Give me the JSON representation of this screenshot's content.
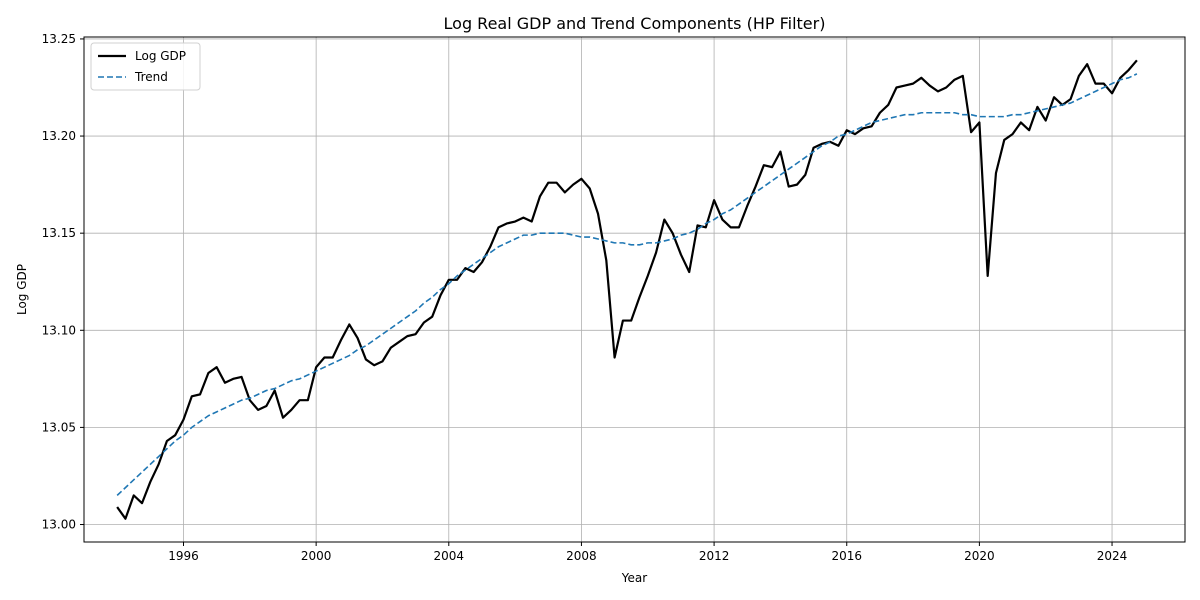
{
  "chart_data": {
    "type": "line",
    "title": "Log Real GDP and Trend Components (HP Filter)",
    "xlabel": "Year",
    "ylabel": "Log GDP",
    "xlim": [
      1993.0,
      2026.2
    ],
    "ylim": [
      12.991,
      13.251
    ],
    "x_ticks": [
      1996,
      2000,
      2004,
      2008,
      2012,
      2016,
      2020,
      2024
    ],
    "y_ticks": [
      13.0,
      13.05,
      13.1,
      13.15,
      13.2,
      13.25
    ],
    "y_tick_labels": [
      "13.00",
      "13.05",
      "13.10",
      "13.15",
      "13.20",
      "13.25"
    ],
    "grid": true,
    "legend": "top-left",
    "x": [
      1994.0,
      1994.25,
      1994.5,
      1994.75,
      1995.0,
      1995.25,
      1995.5,
      1995.75,
      1996.0,
      1996.25,
      1996.5,
      1996.75,
      1997.0,
      1997.25,
      1997.5,
      1997.75,
      1998.0,
      1998.25,
      1998.5,
      1998.75,
      1999.0,
      1999.25,
      1999.5,
      1999.75,
      2000.0,
      2000.25,
      2000.5,
      2000.75,
      2001.0,
      2001.25,
      2001.5,
      2001.75,
      2002.0,
      2002.25,
      2002.5,
      2002.75,
      2003.0,
      2003.25,
      2003.5,
      2003.75,
      2004.0,
      2004.25,
      2004.5,
      2004.75,
      2005.0,
      2005.25,
      2005.5,
      2005.75,
      2006.0,
      2006.25,
      2006.5,
      2006.75,
      2007.0,
      2007.25,
      2007.5,
      2007.75,
      2008.0,
      2008.25,
      2008.5,
      2008.75,
      2009.0,
      2009.25,
      2009.5,
      2009.75,
      2010.0,
      2010.25,
      2010.5,
      2010.75,
      2011.0,
      2011.25,
      2011.5,
      2011.75,
      2012.0,
      2012.25,
      2012.5,
      2012.75,
      2013.0,
      2013.25,
      2013.5,
      2013.75,
      2014.0,
      2014.25,
      2014.5,
      2014.75,
      2015.0,
      2015.25,
      2015.5,
      2015.75,
      2016.0,
      2016.25,
      2016.5,
      2016.75,
      2017.0,
      2017.25,
      2017.5,
      2017.75,
      2018.0,
      2018.25,
      2018.5,
      2018.75,
      2019.0,
      2019.25,
      2019.5,
      2019.75,
      2020.0,
      2020.25,
      2020.5,
      2020.75,
      2021.0,
      2021.25,
      2021.5,
      2021.75,
      2022.0,
      2022.25,
      2022.5,
      2022.75,
      2023.0,
      2023.25,
      2023.5,
      2023.75,
      2024.0,
      2024.25,
      2024.5,
      2024.75
    ],
    "series": [
      {
        "name": "Log GDP",
        "color": "#000000",
        "style": "solid",
        "values": [
          13.009,
          13.003,
          13.015,
          13.011,
          13.022,
          13.031,
          13.043,
          13.046,
          13.054,
          13.066,
          13.067,
          13.078,
          13.081,
          13.073,
          13.075,
          13.076,
          13.064,
          13.059,
          13.061,
          13.069,
          13.055,
          13.059,
          13.064,
          13.064,
          13.081,
          13.086,
          13.086,
          13.095,
          13.103,
          13.096,
          13.085,
          13.082,
          13.084,
          13.091,
          13.094,
          13.097,
          13.098,
          13.104,
          13.107,
          13.118,
          13.126,
          13.126,
          13.132,
          13.13,
          13.135,
          13.143,
          13.153,
          13.155,
          13.156,
          13.158,
          13.156,
          13.169,
          13.176,
          13.176,
          13.171,
          13.175,
          13.178,
          13.173,
          13.16,
          13.136,
          13.086,
          13.105,
          13.105,
          13.117,
          13.128,
          13.14,
          13.157,
          13.15,
          13.139,
          13.13,
          13.154,
          13.153,
          13.167,
          13.157,
          13.153,
          13.153,
          13.164,
          13.174,
          13.185,
          13.184,
          13.192,
          13.174,
          13.175,
          13.18,
          13.194,
          13.196,
          13.197,
          13.195,
          13.203,
          13.201,
          13.204,
          13.205,
          13.212,
          13.216,
          13.225,
          13.226,
          13.227,
          13.23,
          13.226,
          13.223,
          13.225,
          13.229,
          13.231,
          13.202,
          13.207,
          13.128,
          13.181,
          13.198,
          13.201,
          13.207,
          13.203,
          13.215,
          13.208,
          13.22,
          13.216,
          13.219,
          13.231,
          13.237,
          13.227,
          13.227,
          13.222,
          13.23,
          13.234,
          13.239
        ]
      },
      {
        "name": "Trend",
        "color": "#1f77b4",
        "style": "dashed",
        "values": [
          13.015,
          13.019,
          13.023,
          13.027,
          13.031,
          13.035,
          13.039,
          13.043,
          13.046,
          13.05,
          13.053,
          13.056,
          13.058,
          13.06,
          13.062,
          13.064,
          13.065,
          13.067,
          13.069,
          13.07,
          13.072,
          13.074,
          13.075,
          13.077,
          13.079,
          13.081,
          13.083,
          13.085,
          13.087,
          13.09,
          13.092,
          13.095,
          13.098,
          13.101,
          13.104,
          13.107,
          13.11,
          13.114,
          13.117,
          13.121,
          13.124,
          13.128,
          13.131,
          13.134,
          13.137,
          13.14,
          13.143,
          13.145,
          13.147,
          13.149,
          13.149,
          13.15,
          13.15,
          13.15,
          13.15,
          13.149,
          13.148,
          13.148,
          13.147,
          13.146,
          13.145,
          13.145,
          13.144,
          13.144,
          13.145,
          13.145,
          13.146,
          13.147,
          13.149,
          13.15,
          13.152,
          13.155,
          13.157,
          13.16,
          13.162,
          13.165,
          13.168,
          13.171,
          13.174,
          13.177,
          13.18,
          13.183,
          13.186,
          13.189,
          13.192,
          13.195,
          13.197,
          13.2,
          13.201,
          13.203,
          13.205,
          13.207,
          13.208,
          13.209,
          13.21,
          13.211,
          13.211,
          13.212,
          13.212,
          13.212,
          13.212,
          13.212,
          13.211,
          13.211,
          13.21,
          13.21,
          13.21,
          13.21,
          13.211,
          13.211,
          13.212,
          13.213,
          13.214,
          13.215,
          13.216,
          13.217,
          13.219,
          13.221,
          13.223,
          13.225,
          13.227,
          13.229,
          13.23,
          13.232
        ]
      }
    ]
  }
}
